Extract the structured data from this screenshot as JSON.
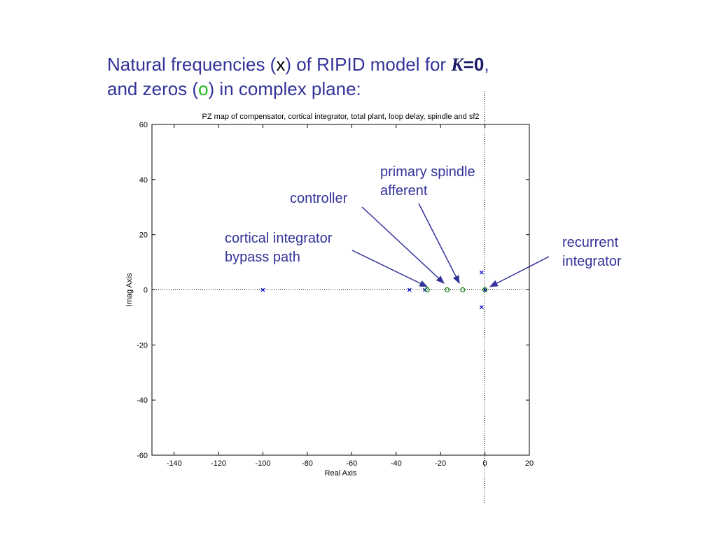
{
  "slide": {
    "heading": {
      "line1": [
        "Natural frequencies (",
        "x",
        ") of RIPID model for ",
        "K",
        "=0",
        ","
      ],
      "line2": [
        "and zeros (",
        "o",
        ") in complex plane:"
      ]
    }
  },
  "chart_data": {
    "type": "scatter",
    "title": "PZ map of compensator, cortical integrator, total plant, loop delay, spindle and sf2",
    "xlabel": "Real Axis",
    "ylabel": "Imag Axis",
    "xlim": [
      -150,
      20
    ],
    "ylim": [
      -60,
      60
    ],
    "xticks": [
      -140,
      -120,
      -100,
      -80,
      -60,
      -40,
      -20,
      0,
      20
    ],
    "yticks": [
      -60,
      -40,
      -20,
      0,
      20,
      40,
      60
    ],
    "series": [
      {
        "name": "poles",
        "marker": "x",
        "color": "#0000cc",
        "x": [
          -100,
          -34,
          -27,
          -1.5,
          -1.5,
          0
        ],
        "values": [
          0,
          0,
          0,
          6.3,
          -6.3,
          0
        ]
      },
      {
        "name": "zeros",
        "marker": "o",
        "color": "#008000",
        "x": [
          -26,
          -17,
          -10,
          0
        ],
        "values": [
          0,
          0,
          0,
          0
        ]
      }
    ],
    "annotations": [
      {
        "lines": [
          "cortical integrator",
          "bypass path"
        ]
      },
      {
        "lines": [
          "controller"
        ]
      },
      {
        "lines": [
          "primary spindle",
          "afferent"
        ]
      },
      {
        "lines": [
          "recurrent",
          "integrator"
        ]
      }
    ]
  }
}
